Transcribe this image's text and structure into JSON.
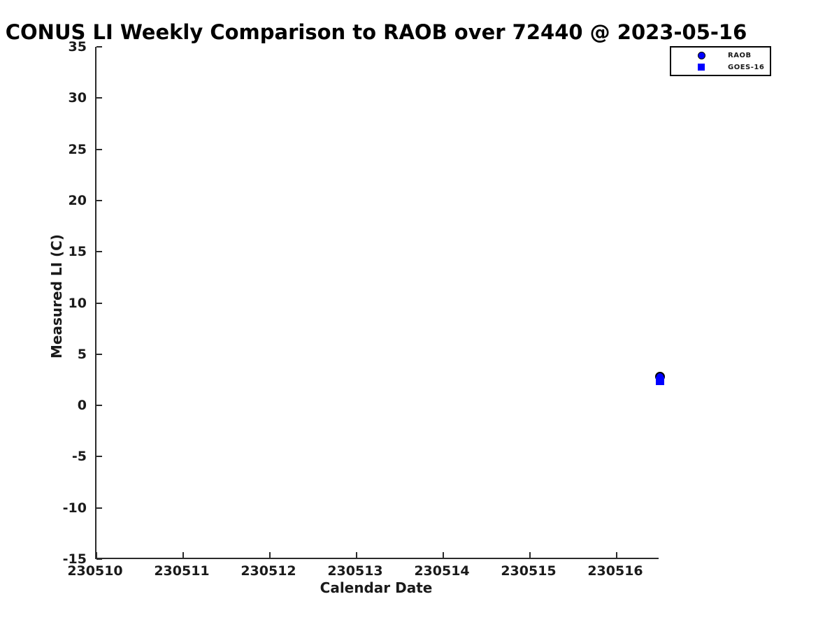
{
  "chart_data": {
    "type": "scatter",
    "title": "CONUS LI Weekly Comparison to RAOB over 72440 @ 2023-05-16",
    "xlabel": "Calendar Date",
    "ylabel": "Measured LI (C)",
    "xlim": [
      230510,
      230516.5
    ],
    "ylim": [
      -15,
      35
    ],
    "xticks": [
      230510,
      230511,
      230512,
      230513,
      230514,
      230515,
      230516
    ],
    "yticks": [
      35,
      30,
      25,
      20,
      15,
      10,
      5,
      0,
      -5,
      -10,
      -15
    ],
    "grid": false,
    "legend_position": "upper right, outside plot box",
    "series": [
      {
        "name": "RAOB",
        "marker": "circle",
        "fill_color": "#0000ff",
        "edge_color": "#000000",
        "points": [
          {
            "x": 230516.5,
            "y": 2.8
          }
        ]
      },
      {
        "name": "GOES-16",
        "marker": "square",
        "fill_color": "#0000ff",
        "edge_color": "#0000ff",
        "points": [
          {
            "x": 230516.5,
            "y": 2.4
          }
        ]
      }
    ],
    "colors": {
      "marker_blue": "#0000ff",
      "axis": "#2b2b2b",
      "text": "#1a1a1a",
      "background": "#ffffff"
    }
  }
}
